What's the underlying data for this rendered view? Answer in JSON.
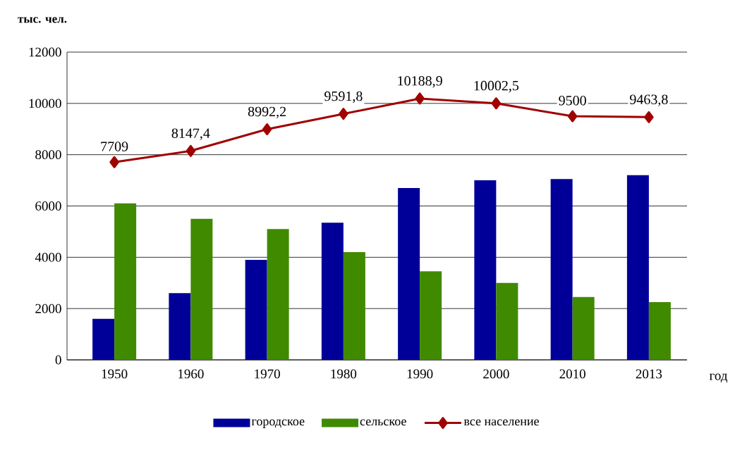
{
  "chart_data": {
    "type": "bar",
    "ylabel": "тыс. чел.",
    "xlabel": "год",
    "categories": [
      "1950",
      "1960",
      "1970",
      "1980",
      "1990",
      "2000",
      "2010",
      "2013"
    ],
    "ylim": [
      0,
      12000
    ],
    "yticks": [
      0,
      2000,
      4000,
      6000,
      8000,
      10000,
      12000
    ],
    "grid": "y",
    "legend": "bottom",
    "series": [
      {
        "name": "городское",
        "color": "#000099",
        "values": [
          1600,
          2600,
          3900,
          5350,
          6700,
          7000,
          7050,
          7200
        ]
      },
      {
        "name": "сельское",
        "color": "#408a00",
        "values": [
          6100,
          5500,
          5100,
          4200,
          3450,
          3000,
          2450,
          2250
        ]
      },
      {
        "name": "все население",
        "type": "line",
        "color": "#a00000",
        "marker": "diamond",
        "values": [
          7709,
          8147.4,
          8992.2,
          9591.8,
          10188.9,
          10002.5,
          9500,
          9463.8
        ],
        "value_labels": [
          "7709",
          "8147,4",
          "8992,2",
          "9591,8",
          "10188,9",
          "10002,5",
          "9500",
          "9463,8"
        ]
      }
    ]
  }
}
